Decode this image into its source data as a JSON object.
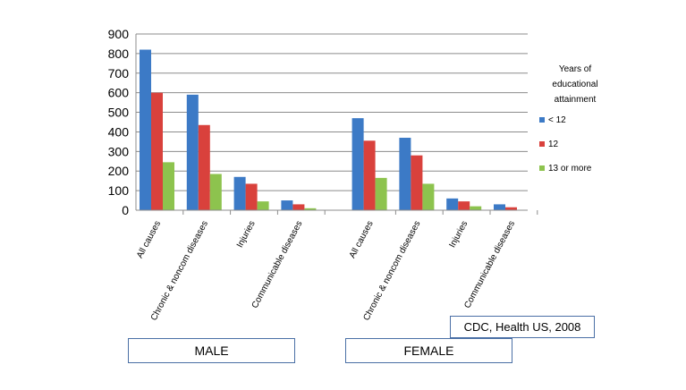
{
  "chart_data": {
    "type": "bar",
    "ylim": [
      0,
      900
    ],
    "yticks": [
      0,
      100,
      200,
      300,
      400,
      500,
      600,
      700,
      800,
      900
    ],
    "grid": true,
    "categories": [
      "All causes",
      "Chronic & noncom diseases",
      "Injuries",
      "Communicable diseases",
      "All causes",
      "Chronic & noncom diseases",
      "Injuries",
      "Communicable diseases"
    ],
    "groups": [
      {
        "label": "MALE",
        "categories": [
          "All causes",
          "Chronic & noncom diseases",
          "Injuries",
          "Communicable diseases"
        ]
      },
      {
        "label": "FEMALE",
        "categories": [
          "All causes",
          "Chronic & noncom diseases",
          "Injuries",
          "Communicable diseases"
        ]
      }
    ],
    "series": [
      {
        "name": "< 12",
        "color": "#3c7ac6",
        "values": [
          820,
          590,
          170,
          50,
          470,
          370,
          60,
          30
        ]
      },
      {
        "name": "12",
        "color": "#d9413c",
        "values": [
          600,
          435,
          135,
          30,
          355,
          280,
          45,
          15
        ]
      },
      {
        "name": "13 or more",
        "color": "#8dc34e",
        "values": [
          245,
          185,
          45,
          10,
          165,
          135,
          20,
          0
        ]
      }
    ],
    "legend": {
      "title_lines": [
        "Years  of",
        "educational",
        "attainment"
      ],
      "position": "right"
    },
    "source": "CDC, Health US, 2008"
  }
}
